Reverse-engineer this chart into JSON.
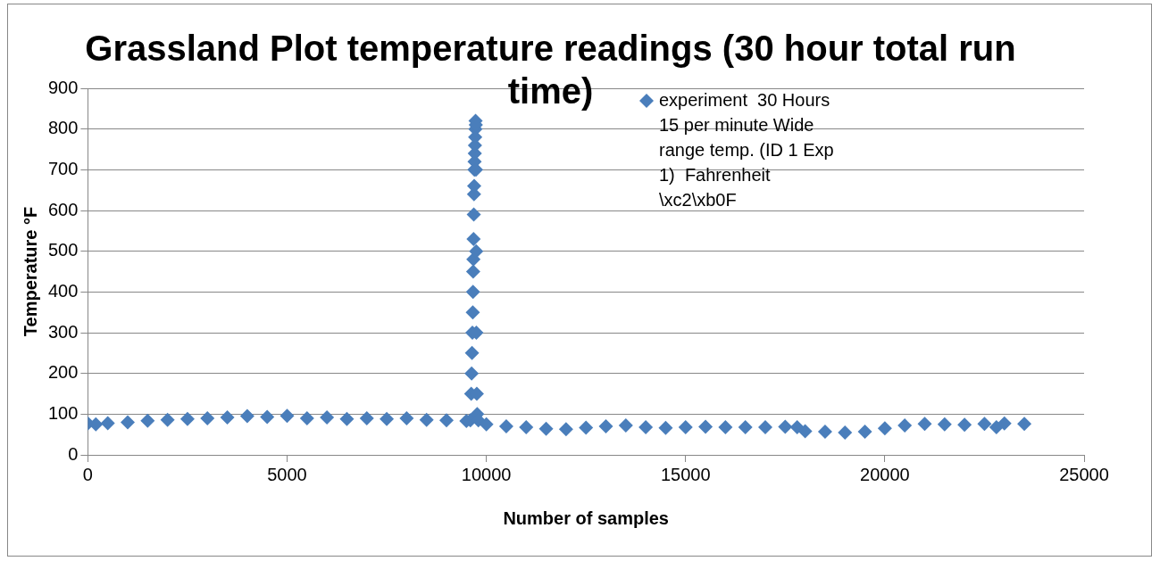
{
  "chart_data": {
    "type": "scatter",
    "title": "Grassland Plot temperature readings (30 hour total run time)",
    "xlabel": "Number of samples",
    "ylabel": "Temperature °F",
    "xlim": [
      0,
      25000
    ],
    "xticks": [
      0,
      5000,
      10000,
      15000,
      20000,
      25000
    ],
    "ylim": [
      0,
      900
    ],
    "yticks": [
      0,
      100,
      200,
      300,
      400,
      500,
      600,
      700,
      800,
      900
    ],
    "grid": "y",
    "legend": "top right",
    "marker": "diamond",
    "series": [
      {
        "name": "experiment  30 Hours  15 per minute Wide range temp. (ID 1 Exp 1)  Fahrenheit \\xc2\\xb0F",
        "color": "#4a7ebb",
        "x": [
          0,
          200,
          500,
          1000,
          1500,
          2000,
          2500,
          3000,
          3500,
          4000,
          4500,
          5000,
          5500,
          6000,
          6500,
          7000,
          7500,
          8000,
          8500,
          9000,
          9500,
          9600,
          9620,
          9630,
          9640,
          9650,
          9660,
          9665,
          9670,
          9675,
          9680,
          9685,
          9690,
          9695,
          9700,
          9705,
          9710,
          9715,
          9720,
          9725,
          9730,
          9735,
          9740,
          9745,
          9750,
          9760,
          9770,
          9800,
          10000,
          10500,
          11000,
          11500,
          12000,
          12500,
          13000,
          13500,
          14000,
          14500,
          15000,
          15500,
          16000,
          16500,
          17000,
          17500,
          17800,
          18000,
          18500,
          19000,
          19500,
          20000,
          20500,
          21000,
          21500,
          22000,
          22500,
          22800,
          23000,
          23500
        ],
        "values": [
          77,
          75,
          78,
          80,
          84,
          86,
          88,
          90,
          92,
          95,
          93,
          96,
          90,
          92,
          88,
          90,
          88,
          90,
          86,
          85,
          83,
          85,
          150,
          200,
          250,
          300,
          350,
          400,
          450,
          480,
          530,
          590,
          640,
          660,
          700,
          720,
          740,
          760,
          780,
          800,
          820,
          810,
          700,
          500,
          300,
          150,
          100,
          85,
          75,
          70,
          68,
          64,
          63,
          67,
          70,
          72,
          68,
          66,
          68,
          69,
          68,
          68,
          68,
          69,
          68,
          58,
          57,
          55,
          57,
          65,
          72,
          76,
          75,
          74,
          76,
          68,
          77,
          76
        ]
      }
    ]
  }
}
